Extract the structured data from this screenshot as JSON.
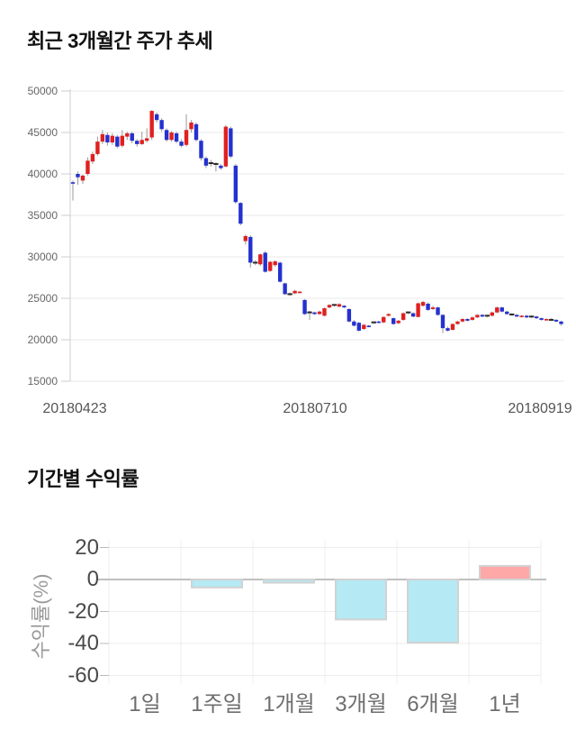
{
  "price_chart": {
    "title": "최근 3개월간 주가 추세"
  },
  "returns_chart": {
    "title": "기간별 수익률",
    "ylabel": "수익률(%)"
  },
  "chart_data": [
    {
      "type": "candlestick",
      "title": "최근 3개월간 주가 추세",
      "x_tick_labels": [
        "20180423",
        "20180710",
        "20180919"
      ],
      "y_ticks": [
        50000,
        45000,
        40000,
        35000,
        30000,
        25000,
        20000,
        15000
      ],
      "ylim": [
        15000,
        50000
      ],
      "up_color": "#e02020",
      "down_color": "#2431d0",
      "doji_color": "#2b2b2b",
      "wick_color": "#999999",
      "grid": true,
      "legend_position": "none",
      "candles_ohlc": [
        [
          39000,
          39200,
          36800,
          38900
        ],
        [
          40000,
          40300,
          38700,
          39600
        ],
        [
          39200,
          39900,
          38800,
          39800
        ],
        [
          40000,
          42000,
          39800,
          41600
        ],
        [
          41500,
          42700,
          41200,
          42400
        ],
        [
          42400,
          44500,
          42200,
          43900
        ],
        [
          43900,
          45300,
          43600,
          44800
        ],
        [
          44700,
          45000,
          43400,
          43800
        ],
        [
          43800,
          44900,
          43500,
          44600
        ],
        [
          44500,
          44700,
          43100,
          43300
        ],
        [
          43400,
          45300,
          43200,
          44600
        ],
        [
          44500,
          45100,
          44100,
          44900
        ],
        [
          44900,
          45100,
          43700,
          44000
        ],
        [
          44000,
          44200,
          43300,
          43600
        ],
        [
          43600,
          45100,
          43500,
          44100
        ],
        [
          44000,
          45500,
          43800,
          44300
        ],
        [
          44400,
          47700,
          44100,
          47600
        ],
        [
          47200,
          47400,
          46200,
          46500
        ],
        [
          46500,
          46700,
          45100,
          45400
        ],
        [
          45300,
          45500,
          43900,
          44100
        ],
        [
          44100,
          45200,
          43900,
          45000
        ],
        [
          44900,
          45100,
          43700,
          43900
        ],
        [
          43900,
          44200,
          43200,
          43400
        ],
        [
          43500,
          47200,
          43300,
          45300
        ],
        [
          45400,
          46500,
          45000,
          46200
        ],
        [
          46000,
          46200,
          43900,
          44100
        ],
        [
          44000,
          44200,
          41600,
          41900
        ],
        [
          41900,
          42100,
          40700,
          41000
        ],
        [
          41300,
          41700,
          40900,
          41300
        ],
        [
          41200,
          41400,
          40300,
          41200
        ],
        [
          41000,
          41200,
          40500,
          40700
        ],
        [
          40900,
          45900,
          40800,
          45700
        ],
        [
          45500,
          45700,
          41900,
          42100
        ],
        [
          41000,
          41200,
          36400,
          36600
        ],
        [
          36500,
          36600,
          33800,
          34000
        ],
        [
          31900,
          32700,
          31500,
          32500
        ],
        [
          32400,
          32600,
          28700,
          29300
        ],
        [
          29300,
          29600,
          29000,
          29300
        ],
        [
          29100,
          30400,
          28900,
          30300
        ],
        [
          30500,
          30700,
          28100,
          28200
        ],
        [
          28300,
          29500,
          28200,
          29400
        ],
        [
          29000,
          29600,
          28800,
          29450
        ],
        [
          29300,
          29400,
          26900,
          27000
        ],
        [
          26800,
          26900,
          25400,
          25500
        ],
        [
          25500,
          25700,
          25300,
          25500
        ],
        [
          25600,
          26000,
          25500,
          25900
        ],
        [
          25700,
          25900,
          25600,
          25800
        ],
        [
          24800,
          24900,
          23000,
          23100
        ],
        [
          23300,
          23500,
          22400,
          23300
        ],
        [
          23300,
          23400,
          23000,
          23100
        ],
        [
          23100,
          23500,
          23000,
          23400
        ],
        [
          22900,
          23900,
          22800,
          23800
        ],
        [
          23900,
          24300,
          23800,
          24200
        ],
        [
          24200,
          24300,
          24000,
          24200
        ],
        [
          24000,
          24400,
          23900,
          24300
        ],
        [
          24100,
          24200,
          23800,
          23900
        ],
        [
          23700,
          23800,
          22100,
          22200
        ],
        [
          22200,
          22400,
          21600,
          21700
        ],
        [
          22050,
          22150,
          21000,
          21100
        ],
        [
          21300,
          21900,
          21200,
          21800
        ],
        [
          21700,
          21800,
          21500,
          21600
        ],
        [
          22100,
          22200,
          21900,
          22100
        ],
        [
          22200,
          22300,
          22000,
          22100
        ],
        [
          22100,
          22800,
          22000,
          22750
        ],
        [
          22900,
          23200,
          22800,
          23100
        ],
        [
          22600,
          22700,
          21800,
          21900
        ],
        [
          22000,
          22400,
          21900,
          22300
        ],
        [
          22400,
          23300,
          22300,
          23200
        ],
        [
          23300,
          23400,
          23100,
          23300
        ],
        [
          23200,
          23300,
          22700,
          22800
        ],
        [
          22750,
          24500,
          22700,
          24400
        ],
        [
          24100,
          24700,
          24000,
          24550
        ],
        [
          24350,
          24500,
          23500,
          23600
        ],
        [
          23700,
          24100,
          23600,
          23900
        ],
        [
          23900,
          24000,
          22900,
          23000
        ],
        [
          23000,
          23100,
          20800,
          21400
        ],
        [
          21400,
          21600,
          21000,
          21100
        ],
        [
          21200,
          22000,
          21100,
          21900
        ],
        [
          21900,
          22300,
          21800,
          22200
        ],
        [
          22200,
          22600,
          22100,
          22500
        ],
        [
          22500,
          22600,
          22200,
          22300
        ],
        [
          22400,
          22800,
          22300,
          22700
        ],
        [
          22700,
          23100,
          22600,
          23000
        ],
        [
          23000,
          23100,
          22700,
          22800
        ],
        [
          22900,
          23000,
          22700,
          22900
        ],
        [
          22900,
          23400,
          22800,
          23300
        ],
        [
          23300,
          24000,
          23200,
          23900
        ],
        [
          23900,
          24000,
          23300,
          23400
        ],
        [
          23400,
          23500,
          23000,
          23100
        ],
        [
          23050,
          23200,
          22900,
          23050
        ],
        [
          23000,
          23100,
          22700,
          22800
        ],
        [
          22800,
          23000,
          22700,
          22900
        ],
        [
          22900,
          23000,
          22600,
          22700
        ],
        [
          22800,
          22900,
          22600,
          22800
        ],
        [
          22800,
          22900,
          22500,
          22600
        ],
        [
          22600,
          22700,
          22300,
          22400
        ],
        [
          22400,
          22600,
          22300,
          22500
        ],
        [
          22400,
          22600,
          22300,
          22400
        ],
        [
          22400,
          22500,
          22100,
          22200
        ],
        [
          22200,
          22300,
          21700,
          21900
        ]
      ]
    },
    {
      "type": "bar",
      "title": "기간별 수익률",
      "categories": [
        "1일",
        "1주일",
        "1개월",
        "3개월",
        "6개월",
        "1년"
      ],
      "values": [
        0,
        -5,
        -2,
        -25,
        -39.5,
        8.5
      ],
      "xlabel": "",
      "ylabel": "수익률(%)",
      "y_ticks": [
        20,
        0,
        -20,
        -40,
        -60
      ],
      "ylim": [
        -65,
        25
      ],
      "grid": true,
      "legend_position": "none",
      "negative_color": "#b5e9f4",
      "positive_color": "#ffa8a8",
      "bar_border_color": "#d2d2d2",
      "zero_line_color": "#c0c0c0",
      "grid_color": "#ececec"
    }
  ]
}
